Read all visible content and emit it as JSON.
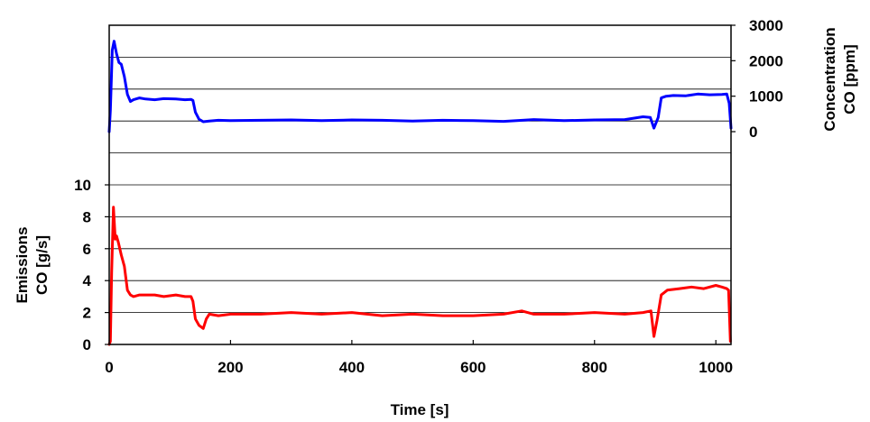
{
  "chart_data": {
    "type": "line",
    "xlabel": "Time [s]",
    "x_ticks": [
      0,
      200,
      400,
      600,
      800,
      1000
    ],
    "xlim": [
      0,
      1025
    ],
    "grid": "horizontal",
    "left_axis": {
      "label_line1": "Emissions",
      "label_line2": "CO [g/s]",
      "ticks": [
        0,
        2,
        4,
        6,
        8,
        10
      ],
      "range": [
        0,
        20
      ]
    },
    "right_axis": {
      "label_line1": "Concentration",
      "label_line2": "CO [ppm]",
      "ticks": [
        0,
        1000,
        2000,
        3000
      ],
      "range": [
        -6000,
        3000
      ]
    },
    "series": [
      {
        "axis": "right",
        "color": "#0000ff",
        "x": [
          0,
          2,
          5,
          8,
          12,
          16,
          20,
          25,
          30,
          35,
          40,
          50,
          60,
          75,
          90,
          110,
          125,
          135,
          138,
          142,
          148,
          155,
          165,
          180,
          200,
          250,
          300,
          350,
          400,
          450,
          500,
          550,
          600,
          650,
          700,
          750,
          800,
          850,
          880,
          892,
          898,
          905,
          910,
          918,
          930,
          950,
          970,
          990,
          1010,
          1018,
          1022,
          1025
        ],
        "y": [
          0,
          600,
          2300,
          2550,
          2200,
          1950,
          1900,
          1550,
          1050,
          850,
          900,
          950,
          920,
          900,
          930,
          920,
          900,
          910,
          880,
          550,
          350,
          280,
          300,
          320,
          310,
          320,
          330,
          310,
          330,
          320,
          300,
          320,
          310,
          290,
          340,
          310,
          330,
          340,
          420,
          400,
          100,
          400,
          950,
          1000,
          1020,
          1010,
          1060,
          1040,
          1050,
          1060,
          800,
          100
        ]
      },
      {
        "axis": "left",
        "color": "#ff0000",
        "x": [
          0,
          2,
          4,
          7,
          10,
          12,
          15,
          20,
          25,
          30,
          35,
          40,
          50,
          60,
          75,
          90,
          110,
          125,
          135,
          138,
          142,
          148,
          155,
          160,
          165,
          180,
          200,
          250,
          300,
          350,
          400,
          450,
          500,
          550,
          600,
          650,
          680,
          700,
          750,
          800,
          850,
          880,
          893,
          898,
          903,
          910,
          920,
          940,
          960,
          980,
          1000,
          1010,
          1018,
          1021,
          1024
        ],
        "y": [
          0,
          0.2,
          4.5,
          8.6,
          6.6,
          6.8,
          6.4,
          5.6,
          4.9,
          3.4,
          3.1,
          3.0,
          3.1,
          3.1,
          3.1,
          3.0,
          3.1,
          3.0,
          3.0,
          2.7,
          1.6,
          1.2,
          1.0,
          1.6,
          1.9,
          1.8,
          1.9,
          1.9,
          2.0,
          1.9,
          2.0,
          1.8,
          1.9,
          1.8,
          1.8,
          1.9,
          2.1,
          1.9,
          1.9,
          2.0,
          1.9,
          2.0,
          2.1,
          0.5,
          1.5,
          3.1,
          3.4,
          3.5,
          3.6,
          3.5,
          3.7,
          3.6,
          3.5,
          3.4,
          0.2
        ]
      }
    ]
  }
}
